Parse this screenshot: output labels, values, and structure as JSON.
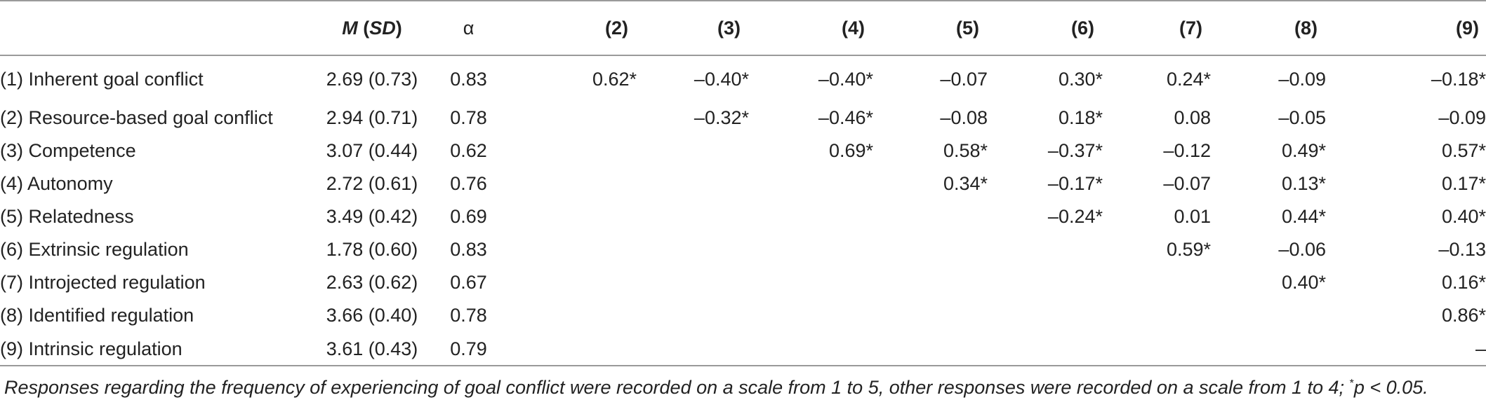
{
  "table": {
    "headers": {
      "msd_m": "M",
      "msd_sd": "SD",
      "alpha": "α",
      "cols": [
        "(2)",
        "(3)",
        "(4)",
        "(5)",
        "(6)",
        "(7)",
        "(8)",
        "(9)"
      ]
    },
    "rows": [
      {
        "label": "(1) Inherent goal conflict",
        "msd": "2.69 (0.73)",
        "alpha": "0.83",
        "cells": [
          "0.62*",
          "–0.40*",
          "–0.40*",
          "–0.07",
          "0.30*",
          "0.24*",
          "–0.09",
          "–0.18*"
        ]
      },
      {
        "label": "(2) Resource-based goal conflict",
        "msd": "2.94 (0.71)",
        "alpha": "0.78",
        "cells": [
          "",
          "–0.32*",
          "–0.46*",
          "–0.08",
          "0.18*",
          "0.08",
          "–0.05",
          "–0.09"
        ]
      },
      {
        "label": "(3) Competence",
        "msd": "3.07 (0.44)",
        "alpha": "0.62",
        "cells": [
          "",
          "",
          "0.69*",
          "0.58*",
          "–0.37*",
          "–0.12",
          "0.49*",
          "0.57*"
        ]
      },
      {
        "label": "(4) Autonomy",
        "msd": "2.72 (0.61)",
        "alpha": "0.76",
        "cells": [
          "",
          "",
          "",
          "0.34*",
          "–0.17*",
          "–0.07",
          "0.13*",
          "0.17*"
        ]
      },
      {
        "label": "(5) Relatedness",
        "msd": "3.49 (0.42)",
        "alpha": "0.69",
        "cells": [
          "",
          "",
          "",
          "",
          "–0.24*",
          "0.01",
          "0.44*",
          "0.40*"
        ]
      },
      {
        "label": "(6) Extrinsic regulation",
        "msd": "1.78 (0.60)",
        "alpha": "0.83",
        "cells": [
          "",
          "",
          "",
          "",
          "",
          "0.59*",
          "–0.06",
          "–0.13"
        ]
      },
      {
        "label": "(7) Introjected regulation",
        "msd": "2.63 (0.62)",
        "alpha": "0.67",
        "cells": [
          "",
          "",
          "",
          "",
          "",
          "",
          "0.40*",
          "0.16*"
        ]
      },
      {
        "label": "(8) Identified regulation",
        "msd": "3.66 (0.40)",
        "alpha": "0.78",
        "cells": [
          "",
          "",
          "",
          "",
          "",
          "",
          "",
          "0.86*"
        ]
      },
      {
        "label": "(9) Intrinsic regulation",
        "msd": "3.61 (0.43)",
        "alpha": "0.79",
        "cells": [
          "",
          "",
          "",
          "",
          "",
          "",
          "",
          "–"
        ]
      }
    ]
  },
  "note": {
    "main": "Responses regarding the frequency of experiencing of goal conflict were recorded on a scale from 1 to 5, other responses were recorded on a scale from 1 to 4; ",
    "sup": "*",
    "tail": "p < 0.05."
  }
}
